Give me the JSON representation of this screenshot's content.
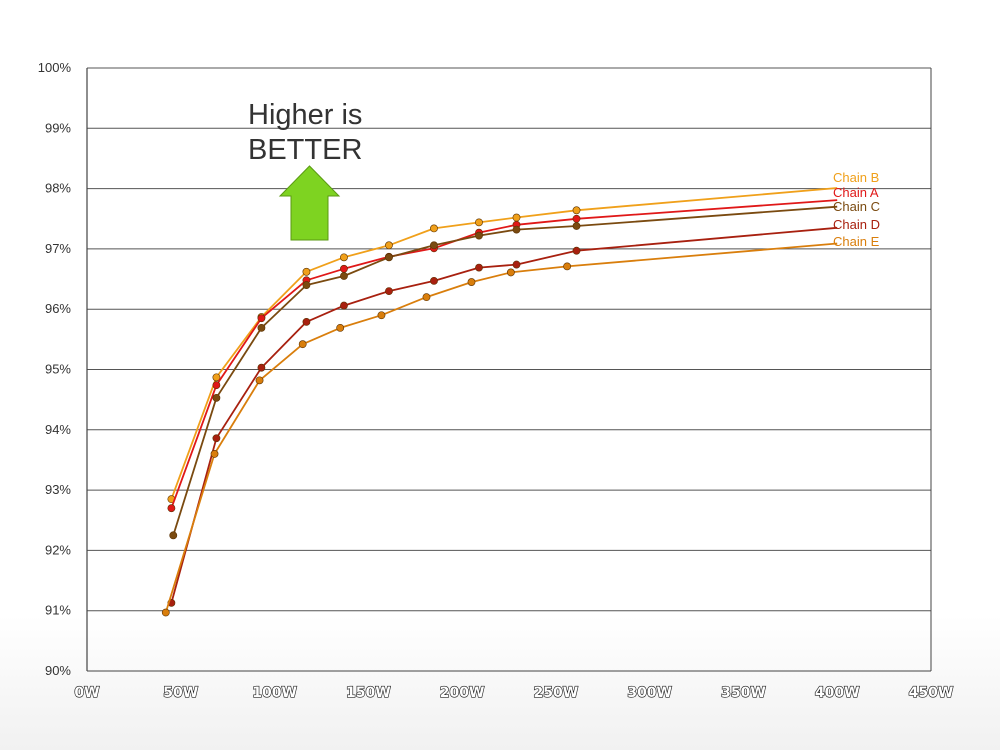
{
  "chart_data": {
    "type": "line",
    "title": "",
    "xlabel": "",
    "ylabel": "",
    "xlim": [
      0,
      450
    ],
    "ylim": [
      90,
      100
    ],
    "x_ticks": [
      "0W",
      "50W",
      "100W",
      "150W",
      "200W",
      "250W",
      "300W",
      "350W",
      "400W",
      "450W"
    ],
    "y_ticks": [
      "90%",
      "91%",
      "92%",
      "93%",
      "94%",
      "95%",
      "96%",
      "97%",
      "98%",
      "99%",
      "100%"
    ],
    "grid": true,
    "legend_placement": "right end of lines",
    "annotation": {
      "lines": [
        "Higher is",
        "BETTER"
      ],
      "arrow_color": "#7ed321"
    },
    "series": [
      {
        "name": "Chain B",
        "color": "#f0a01a",
        "points": [
          [
            45,
            92.85
          ],
          [
            69,
            94.87
          ],
          [
            93,
            95.87
          ],
          [
            117,
            96.62
          ],
          [
            137,
            96.86
          ],
          [
            161,
            97.06
          ],
          [
            185,
            97.34
          ],
          [
            209,
            97.44
          ],
          [
            229,
            97.52
          ],
          [
            261,
            97.64
          ],
          [
            400,
            98.01
          ]
        ]
      },
      {
        "name": "Chain A",
        "color": "#e01818",
        "points": [
          [
            45,
            92.7
          ],
          [
            69,
            94.74
          ],
          [
            93,
            95.85
          ],
          [
            117,
            96.48
          ],
          [
            137,
            96.67
          ],
          [
            161,
            96.87
          ],
          [
            185,
            97.01
          ],
          [
            209,
            97.27
          ],
          [
            229,
            97.4
          ],
          [
            261,
            97.5
          ],
          [
            400,
            97.81
          ]
        ]
      },
      {
        "name": "Chain C",
        "color": "#7a4a10",
        "points": [
          [
            46,
            92.25
          ],
          [
            69,
            94.53
          ],
          [
            93,
            95.69
          ],
          [
            117,
            96.4
          ],
          [
            137,
            96.55
          ],
          [
            161,
            96.86
          ],
          [
            185,
            97.06
          ],
          [
            209,
            97.22
          ],
          [
            229,
            97.32
          ],
          [
            261,
            97.38
          ],
          [
            400,
            97.7
          ]
        ]
      },
      {
        "name": "Chain D",
        "color": "#a8200f",
        "points": [
          [
            45,
            91.13
          ],
          [
            69,
            93.86
          ],
          [
            93,
            95.03
          ],
          [
            117,
            95.79
          ],
          [
            137,
            96.06
          ],
          [
            161,
            96.3
          ],
          [
            185,
            96.47
          ],
          [
            209,
            96.69
          ],
          [
            229,
            96.74
          ],
          [
            261,
            96.97
          ],
          [
            400,
            97.35
          ]
        ]
      },
      {
        "name": "Chain E",
        "color": "#d97e0c",
        "points": [
          [
            42,
            90.97
          ],
          [
            68,
            93.6
          ],
          [
            92,
            94.82
          ],
          [
            115,
            95.42
          ],
          [
            135,
            95.69
          ],
          [
            157,
            95.9
          ],
          [
            181,
            96.2
          ],
          [
            205,
            96.45
          ],
          [
            226,
            96.61
          ],
          [
            256,
            96.71
          ],
          [
            400,
            97.09
          ]
        ]
      }
    ]
  }
}
